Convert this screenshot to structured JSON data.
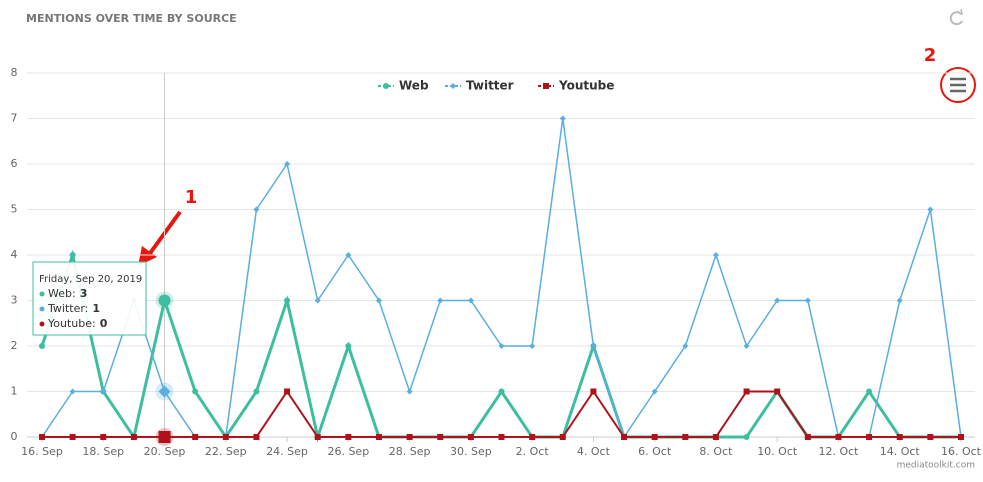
{
  "chart_data": {
    "type": "line",
    "title": "MENTIONS OVER TIME BY SOURCE",
    "categories": [
      "16. Sep",
      null,
      "18. Sep",
      null,
      "20. Sep",
      null,
      "22. Sep",
      null,
      "24. Sep",
      null,
      "26. Sep",
      null,
      "28. Sep",
      null,
      "30. Sep",
      null,
      "2. Oct",
      null,
      "4. Oct",
      null,
      "6. Oct",
      null,
      "8. Oct",
      null,
      "10. Oct",
      null,
      "12. Oct",
      null,
      "14. Oct",
      null,
      "16. Oct"
    ],
    "series": [
      {
        "name": "Web",
        "color": "#3dbf9f",
        "values": [
          2,
          4,
          1,
          0,
          3,
          1,
          0,
          1,
          3,
          0,
          2,
          0,
          0,
          0,
          0,
          1,
          0,
          0,
          2,
          0,
          0,
          0,
          0,
          0,
          1,
          0,
          0,
          1,
          0,
          0,
          0
        ]
      },
      {
        "name": "Twitter",
        "color": "#5aaee0",
        "values": [
          0,
          1,
          1,
          3,
          1,
          0,
          0,
          5,
          6,
          3,
          4,
          3,
          1,
          3,
          3,
          2,
          2,
          7,
          2,
          0,
          1,
          2,
          4,
          2,
          3,
          3,
          0,
          0,
          3,
          5,
          0
        ]
      },
      {
        "name": "Youtube",
        "color": "#b0121b",
        "values": [
          0,
          0,
          0,
          0,
          0,
          0,
          0,
          0,
          1,
          0,
          0,
          0,
          0,
          0,
          0,
          0,
          0,
          0,
          1,
          0,
          0,
          0,
          0,
          1,
          1,
          0,
          0,
          0,
          0,
          0,
          0
        ]
      }
    ],
    "ylim": [
      0,
      8
    ],
    "yticks": [
      0,
      1,
      2,
      3,
      4,
      5,
      6,
      7,
      8
    ],
    "grid": true,
    "legend": "top",
    "tooltip": {
      "title": "Friday, Sep 20, 2019",
      "items": [
        {
          "label": "Web:",
          "value": "3"
        },
        {
          "label": "Twitter:",
          "value": "1"
        },
        {
          "label": "Youtube:",
          "value": "0"
        }
      ]
    },
    "credit": "mediatoolkit.com",
    "annotations": [
      "1",
      "2"
    ]
  }
}
